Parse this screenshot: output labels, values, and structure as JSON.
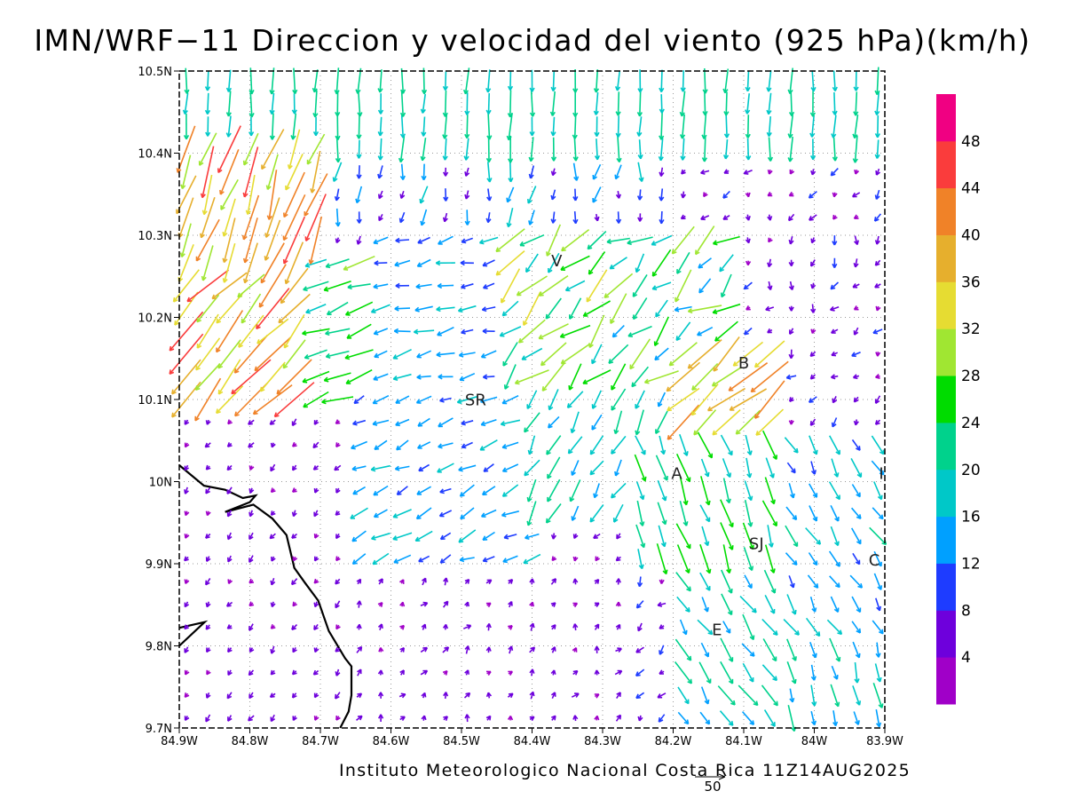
{
  "title": "IMN/WRF−11 Direccion y velocidad del viento (925 hPa)(km/h)",
  "credit": "Instituto Meteorologico Nacional Costa Rica 11Z14AUG2025",
  "scale_vector": {
    "label": "50",
    "speed": 50,
    "units": "km/h"
  },
  "map": {
    "lon_range": [
      -84.9,
      -83.9
    ],
    "lat_range": [
      9.7,
      10.5
    ],
    "lon_ticks": [
      "84.9W",
      "84.8W",
      "84.7W",
      "84.6W",
      "84.5W",
      "84.4W",
      "84.3W",
      "84.2W",
      "84.1W",
      "84W",
      "83.9W"
    ],
    "lat_ticks": [
      "9.7N",
      "9.8N",
      "9.9N",
      "10N",
      "10.1N",
      "10.2N",
      "10.3N",
      "10.4N",
      "10.5N"
    ],
    "grid": "dotted",
    "places": [
      {
        "label": "V",
        "lon": -84.365,
        "lat": 10.262
      },
      {
        "label": "SR",
        "lon": -84.48,
        "lat": 10.093
      },
      {
        "label": "B",
        "lon": -84.1,
        "lat": 10.138
      },
      {
        "label": "A",
        "lon": -84.195,
        "lat": 10.003
      },
      {
        "label": "SJ",
        "lon": -84.082,
        "lat": 9.918
      },
      {
        "label": "C",
        "lon": -83.915,
        "lat": 9.898
      },
      {
        "label": "E",
        "lon": -84.138,
        "lat": 9.813
      },
      {
        "label": "I",
        "lon": -83.905,
        "lat": 10.003
      }
    ],
    "coastline": [
      [
        -84.9,
        10.02
      ],
      [
        -84.865,
        9.995
      ],
      [
        -84.835,
        9.99
      ],
      [
        -84.81,
        9.98
      ],
      [
        -84.792,
        9.983
      ],
      [
        -84.8,
        9.975
      ],
      [
        -84.835,
        9.963
      ],
      [
        -84.795,
        9.972
      ],
      [
        -84.768,
        9.955
      ],
      [
        -84.748,
        9.935
      ],
      [
        -84.737,
        9.895
      ],
      [
        -84.722,
        9.877
      ],
      [
        -84.703,
        9.855
      ],
      [
        -84.688,
        9.818
      ],
      [
        -84.665,
        9.785
      ],
      [
        -84.656,
        9.775
      ],
      [
        -84.656,
        9.74
      ],
      [
        -84.66,
        9.72
      ],
      [
        -84.672,
        9.7
      ]
    ],
    "island": [
      [
        -84.9,
        9.822
      ],
      [
        -84.864,
        9.829
      ],
      [
        -84.9,
        9.8
      ]
    ]
  },
  "colorbar": {
    "levels": [
      4,
      8,
      12,
      16,
      20,
      24,
      28,
      32,
      36,
      40,
      44,
      48
    ],
    "colors": [
      "#a000c8",
      "#6e00dc",
      "#1e3cff",
      "#00a0ff",
      "#00c8c8",
      "#00d28c",
      "#00dc00",
      "#a0e632",
      "#e6dc32",
      "#e6af2d",
      "#f08228",
      "#fa3c3c",
      "#f00082"
    ]
  },
  "wind_regions": [
    {
      "lon": [
        -84.9,
        -83.9
      ],
      "lat": [
        10.4,
        10.5
      ],
      "dir_deg": 268,
      "speed": 20,
      "jitter_dir": 6,
      "jitter_speed": 4
    },
    {
      "lon": [
        -84.9,
        -84.7
      ],
      "lat": [
        10.24,
        10.42
      ],
      "dir_deg": 250,
      "speed": 38,
      "jitter_dir": 12,
      "jitter_speed": 8
    },
    {
      "lon": [
        -84.9,
        -84.7
      ],
      "lat": [
        10.1,
        10.24
      ],
      "dir_deg": 228,
      "speed": 38,
      "jitter_dir": 12,
      "jitter_speed": 8
    },
    {
      "lon": [
        -84.72,
        -84.62
      ],
      "lat": [
        10.08,
        10.28
      ],
      "dir_deg": 200,
      "speed": 24,
      "jitter_dir": 12,
      "jitter_speed": 6
    },
    {
      "lon": [
        -84.7,
        -84.2
      ],
      "lat": [
        10.3,
        10.4
      ],
      "dir_deg": 262,
      "speed": 12,
      "jitter_dir": 20,
      "jitter_speed": 6
    },
    {
      "lon": [
        -84.62,
        -84.45
      ],
      "lat": [
        10.12,
        10.3
      ],
      "dir_deg": 192,
      "speed": 14,
      "jitter_dir": 15,
      "jitter_speed": 4
    },
    {
      "lon": [
        -84.45,
        -84.3
      ],
      "lat": [
        10.12,
        10.3
      ],
      "dir_deg": 225,
      "speed": 26,
      "jitter_dir": 25,
      "jitter_speed": 8
    },
    {
      "lon": [
        -84.3,
        -84.12
      ],
      "lat": [
        10.1,
        10.3
      ],
      "dir_deg": 218,
      "speed": 24,
      "jitter_dir": 30,
      "jitter_speed": 10
    },
    {
      "lon": [
        -84.2,
        -84.05
      ],
      "lat": [
        10.05,
        10.18
      ],
      "dir_deg": 222,
      "speed": 36,
      "jitter_dir": 12,
      "jitter_speed": 8
    },
    {
      "lon": [
        -84.12,
        -83.9
      ],
      "lat": [
        10.17,
        10.36
      ],
      "dir_deg": 240,
      "speed": 6,
      "jitter_dir": 45,
      "jitter_speed": 3
    },
    {
      "lon": [
        -84.9,
        -84.65
      ],
      "lat": [
        9.7,
        10.09
      ],
      "dir_deg": 235,
      "speed": 5,
      "jitter_dir": 20,
      "jitter_speed": 2
    },
    {
      "lon": [
        -84.65,
        -84.4
      ],
      "lat": [
        9.88,
        10.1
      ],
      "dir_deg": 205,
      "speed": 14,
      "jitter_dir": 15,
      "jitter_speed": 4
    },
    {
      "lon": [
        -84.4,
        -84.2
      ],
      "lat": [
        9.94,
        10.1
      ],
      "dir_deg": 240,
      "speed": 18,
      "jitter_dir": 15,
      "jitter_speed": 5
    },
    {
      "lon": [
        -84.65,
        -84.25
      ],
      "lat": [
        9.7,
        9.88
      ],
      "dir_deg": 60,
      "speed": 5,
      "jitter_dir": 40,
      "jitter_speed": 2
    },
    {
      "lon": [
        -84.25,
        -84.05
      ],
      "lat": [
        9.9,
        10.05
      ],
      "dir_deg": 290,
      "speed": 22,
      "jitter_dir": 10,
      "jitter_speed": 6
    },
    {
      "lon": [
        -84.05,
        -83.9
      ],
      "lat": [
        9.8,
        10.05
      ],
      "dir_deg": 300,
      "speed": 16,
      "jitter_dir": 15,
      "jitter_speed": 5
    },
    {
      "lon": [
        -84.2,
        -84.05
      ],
      "lat": [
        9.7,
        9.9
      ],
      "dir_deg": 305,
      "speed": 18,
      "jitter_dir": 15,
      "jitter_speed": 6
    },
    {
      "lon": [
        -84.05,
        -83.9
      ],
      "lat": [
        9.7,
        9.8
      ],
      "dir_deg": 285,
      "speed": 18,
      "jitter_dir": 12,
      "jitter_speed": 6
    }
  ]
}
